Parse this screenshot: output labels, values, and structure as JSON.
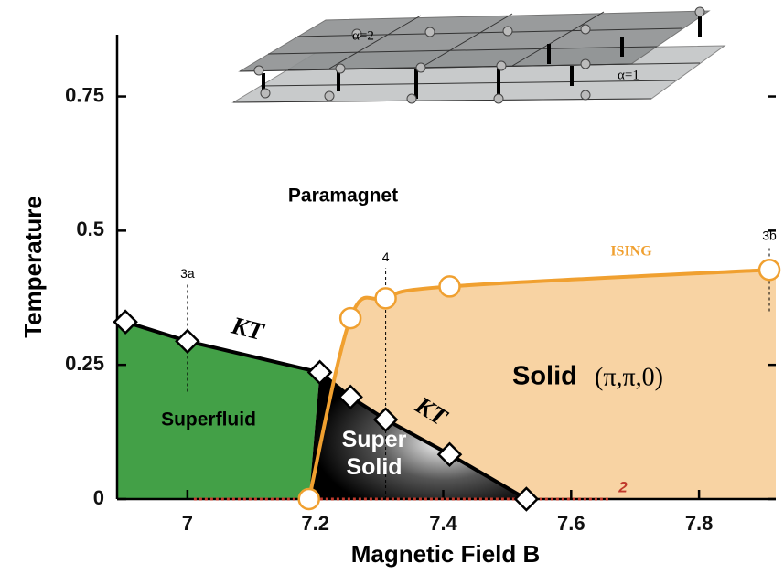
{
  "chart_data": {
    "type": "phase",
    "xlabel": "Magnetic Field B",
    "ylabel": "Temperature",
    "xlim": [
      6.89,
      7.92
    ],
    "ylim": [
      0,
      0.865
    ],
    "xticks": [
      7,
      7.2,
      7.4,
      7.6,
      7.8
    ],
    "yticks": [
      0,
      0.25,
      0.5,
      0.75
    ],
    "series": [
      {
        "name": "KT",
        "color": "#000000",
        "marker": "diamond",
        "x": [
          6.903,
          7.0,
          7.207
        ],
        "values": [
          0.33,
          0.294,
          0.236
        ]
      },
      {
        "name": "KT",
        "color": "#000000",
        "marker": "diamond",
        "x": [
          7.207,
          7.255,
          7.31,
          7.41,
          7.53
        ],
        "values": [
          0.236,
          0.19,
          0.148,
          0.083,
          0
        ]
      },
      {
        "name": "ISING",
        "color": "#f0a030",
        "marker": "circle",
        "x": [
          7.19,
          7.255,
          7.31,
          7.41,
          7.91
        ],
        "values": [
          0,
          0.337,
          0.374,
          0.396,
          0.427
        ]
      }
    ],
    "regions": [
      {
        "label": "Paramagnet"
      },
      {
        "label": "Superfluid",
        "color": "#43a047"
      },
      {
        "label": "Super Solid",
        "color": "#111111"
      },
      {
        "label": "Solid",
        "symmetry": "(π,π,0)",
        "color": "#f8d3a3"
      }
    ],
    "transition_line": {
      "label": "2",
      "x": [
        7.01,
        7.66
      ],
      "y": 0,
      "color": "#c0392b"
    },
    "annotations": [
      {
        "text": "3a",
        "x": 7.0,
        "y": [
          0.2,
          0.4
        ]
      },
      {
        "text": "4",
        "x": 7.31,
        "y": [
          0,
          0.43
        ]
      },
      {
        "text": "3b",
        "x": 7.91,
        "y": [
          0.35,
          0.47
        ]
      }
    ],
    "inset_labels": [
      "α=2",
      "α=1"
    ]
  }
}
